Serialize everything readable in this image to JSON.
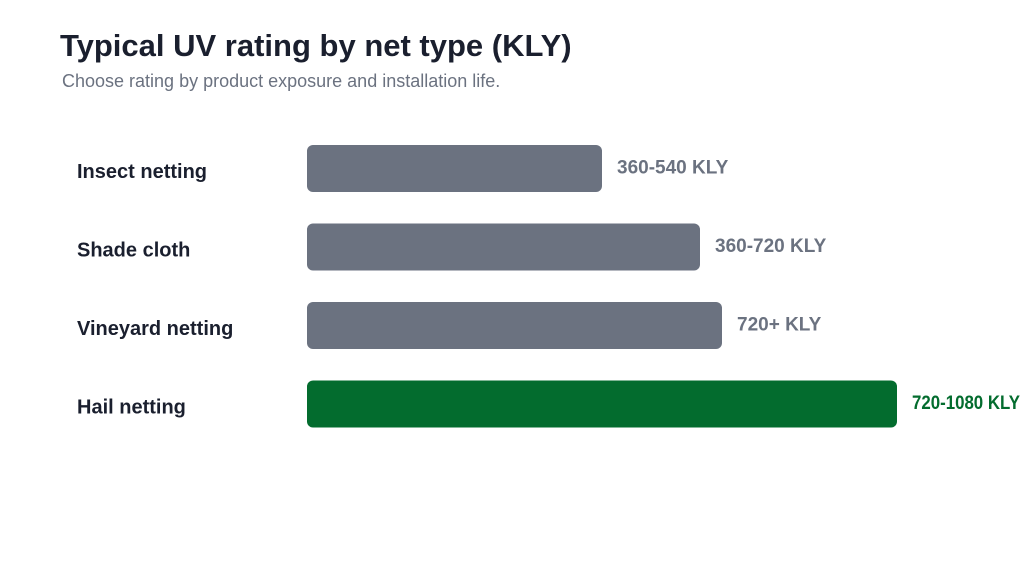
{
  "chart_data": {
    "type": "bar",
    "orientation": "horizontal",
    "title": "Typical UV rating by net type (KLY)",
    "subtitle": "Choose rating by product exposure and installation life.",
    "categories": [
      "Insect netting",
      "Shade cloth",
      "Vineyard netting",
      "Hail netting"
    ],
    "values": [
      540,
      720,
      760,
      1080
    ],
    "value_labels": [
      "360-540 KLY",
      "360-720 KLY",
      "720+ KLY",
      "720-1080 KLY"
    ],
    "xlim": [
      0,
      1080
    ],
    "grid": false,
    "legend": "none",
    "highlight_index": 3,
    "colors": {
      "default": "#6b7280",
      "highlight": "#036c2e",
      "label_default": "#6b7280",
      "label_highlight": "#036c2e"
    }
  }
}
